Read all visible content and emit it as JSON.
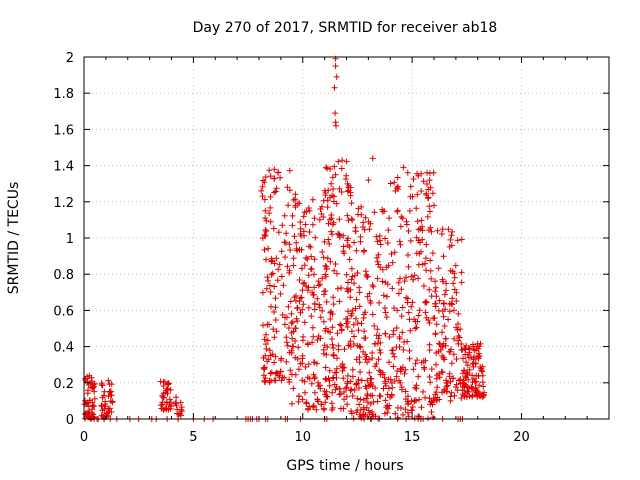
{
  "chart_data": {
    "type": "scatter",
    "title": "Day 270 of 2017, SRMTID for receiver ab18",
    "xlabel": "GPS time / hours",
    "ylabel": "SRMTID / TECUs",
    "xlim": [
      0,
      24
    ],
    "ylim": [
      0,
      2
    ],
    "xticks": [
      0,
      5,
      10,
      15,
      20
    ],
    "yticks": [
      0,
      0.2,
      0.4,
      0.6,
      0.8,
      1,
      1.2,
      1.4,
      1.6,
      1.8,
      2
    ],
    "ytick_labels": [
      "0",
      "0.2",
      "0.4",
      "0.6",
      "0.8",
      "1",
      "1.2",
      "1.4",
      "1.6",
      "1.8",
      "2"
    ],
    "xtick_labels": [
      "0",
      "5",
      "10",
      "15",
      "20"
    ],
    "marker": "plus",
    "series": [
      {
        "name": "SRMTID",
        "color": "#e00000",
        "clusters": [
          {
            "x": [
              0.0,
              0.5
            ],
            "y": [
              0.0,
              0.24
            ],
            "n": 55
          },
          {
            "x": [
              0.8,
              1.3
            ],
            "y": [
              0.0,
              0.22
            ],
            "n": 40
          },
          {
            "x": [
              3.5,
              4.0
            ],
            "y": [
              0.05,
              0.21
            ],
            "n": 35
          },
          {
            "x": [
              4.1,
              4.5
            ],
            "y": [
              0.0,
              0.14
            ],
            "n": 14
          },
          {
            "x": [
              8.1,
              9.5
            ],
            "y": [
              0.2,
              1.38
            ],
            "n": 140
          },
          {
            "x": [
              9.5,
              11.0
            ],
            "y": [
              0.05,
              1.25
            ],
            "n": 170
          },
          {
            "x": [
              11.0,
              12.2
            ],
            "y": [
              0.05,
              1.43
            ],
            "n": 170
          },
          {
            "x": [
              12.2,
              13.9
            ],
            "y": [
              0.0,
              1.2
            ],
            "n": 200
          },
          {
            "x": [
              13.9,
              16.0
            ],
            "y": [
              0.0,
              1.4
            ],
            "n": 220
          },
          {
            "x": [
              16.0,
              17.3
            ],
            "y": [
              0.1,
              1.05
            ],
            "n": 130
          },
          {
            "x": [
              17.3,
              18.3
            ],
            "y": [
              0.12,
              0.42
            ],
            "n": 110
          }
        ],
        "points": [
          [
            11.5,
            1.99
          ],
          [
            11.5,
            1.95
          ],
          [
            11.55,
            1.89
          ],
          [
            11.45,
            1.83
          ],
          [
            11.48,
            1.69
          ],
          [
            11.5,
            1.64
          ],
          [
            11.52,
            1.62
          ],
          [
            13.2,
            1.44
          ],
          [
            11.8,
            1.43
          ],
          [
            14.6,
            1.39
          ],
          [
            14.8,
            1.36
          ],
          [
            8.7,
            1.38
          ],
          [
            8.7,
            1.33
          ],
          [
            9.3,
            1.28
          ],
          [
            8.1,
            1.26
          ],
          [
            16.0,
            1.18
          ],
          [
            14.9,
            1.15
          ],
          [
            11.3,
            1.3
          ],
          [
            13.0,
            1.32
          ]
        ],
        "zero_points": [
          0.6,
          0.65,
          1.2,
          1.5,
          2.1,
          2.5,
          3.1,
          3.3,
          3.8,
          4.3,
          5.0,
          5.5,
          5.9,
          7.4,
          7.5,
          7.6,
          7.7,
          7.9,
          8.0,
          8.3,
          8.4,
          9.2,
          9.3,
          9.9,
          11.0,
          11.1,
          12.8,
          13.1,
          15.4,
          15.5,
          16.4,
          17.1,
          17.2,
          17.3
        ]
      }
    ]
  }
}
